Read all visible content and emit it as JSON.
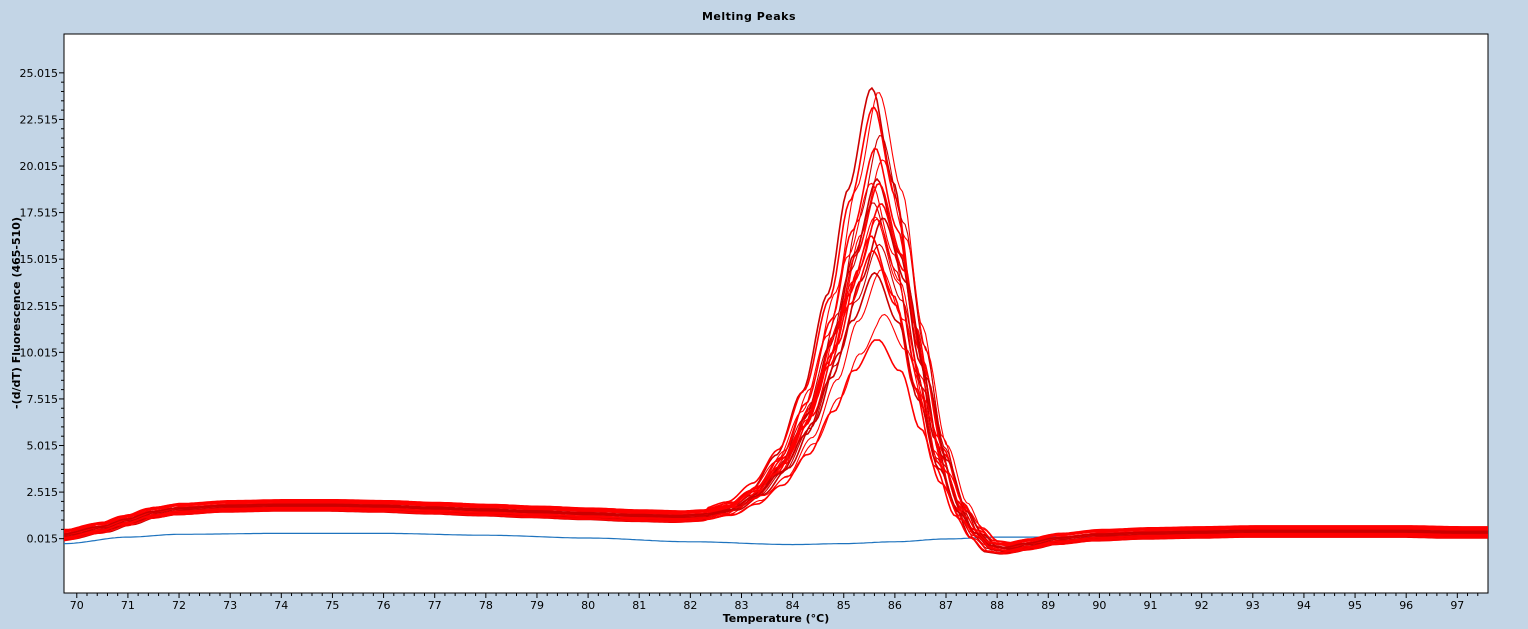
{
  "chart_data": {
    "type": "line",
    "title": "Melting Peaks",
    "xlabel": "Temperature (°C)",
    "ylabel": "-(d/dT) Fluorescence (465-510)",
    "xlim": [
      69.75,
      97.6
    ],
    "ylim": [
      -2.9,
      27.1
    ],
    "x_ticks": [
      "70",
      "71",
      "72",
      "73",
      "74",
      "75",
      "76",
      "77",
      "78",
      "79",
      "80",
      "81",
      "82",
      "83",
      "84",
      "85",
      "86",
      "87",
      "88",
      "89",
      "90",
      "91",
      "92",
      "93",
      "94",
      "95",
      "96",
      "97"
    ],
    "y_ticks": [
      "0.015",
      "2.515",
      "5.015",
      "7.515",
      "10.015",
      "12.515",
      "15.015",
      "17.515",
      "20.015",
      "22.515",
      "25.015"
    ],
    "grid": false,
    "colors": {
      "samples": "#ff0000",
      "control": "#1e73be",
      "background": "#c3d5e6",
      "plot_bg": "#ffffff"
    },
    "sample_peak_temperature": 85.65,
    "sample_peak_heights": [
      24.7,
      24.1,
      23.1,
      22.0,
      21.0,
      20.2,
      19.5,
      19.1,
      18.8,
      18.2,
      17.9,
      17.6,
      17.3,
      17.0,
      16.5,
      15.8,
      15.2,
      14.6,
      14.2,
      11.6,
      10.8
    ],
    "sample_curve_points": {
      "x": [
        69.75,
        70.5,
        71.0,
        71.5,
        72.0,
        73.0,
        74.0,
        75.0,
        76.0,
        77.0,
        78.0,
        79.0,
        80.0,
        81.0,
        81.8,
        82.2,
        82.8,
        83.3,
        83.8,
        84.3,
        84.8,
        85.2,
        85.65,
        86.1,
        86.5,
        86.9,
        87.3,
        87.6,
        87.9,
        88.2,
        88.6,
        89.2,
        90.0,
        91.0,
        92.0,
        93.0,
        94.0,
        95.0,
        96.0,
        97.0,
        97.6
      ],
      "y": [
        0.2,
        0.6,
        1.0,
        1.4,
        1.6,
        1.75,
        1.8,
        1.8,
        1.75,
        1.65,
        1.55,
        1.45,
        1.35,
        1.25,
        1.2,
        1.25,
        1.6,
        2.4,
        3.8,
        6.2,
        9.8,
        13.5,
        16.8,
        13.5,
        8.5,
        4.2,
        1.5,
        0.3,
        -0.4,
        -0.5,
        -0.3,
        0.0,
        0.2,
        0.3,
        0.35,
        0.4,
        0.4,
        0.4,
        0.4,
        0.35,
        0.35
      ]
    },
    "control_curve_points": {
      "x": [
        69.75,
        71.0,
        72.0,
        74.0,
        76.0,
        78.0,
        80.0,
        82.0,
        84.0,
        85.0,
        86.0,
        87.0,
        88.0,
        90.0,
        92.0,
        94.0,
        96.0,
        97.6
      ],
      "y": [
        -0.25,
        0.1,
        0.25,
        0.3,
        0.3,
        0.2,
        0.05,
        -0.15,
        -0.3,
        -0.25,
        -0.15,
        0.0,
        0.1,
        0.1,
        0.15,
        0.2,
        0.2,
        0.15
      ]
    }
  }
}
